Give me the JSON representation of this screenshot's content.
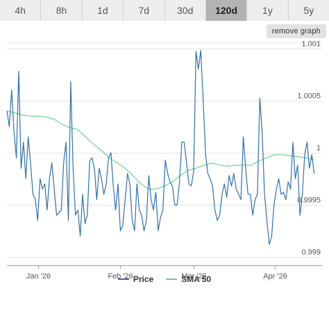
{
  "range_tabs": [
    {
      "label": "4h",
      "active": false
    },
    {
      "label": "8h",
      "active": false
    },
    {
      "label": "1d",
      "active": false
    },
    {
      "label": "7d",
      "active": false
    },
    {
      "label": "30d",
      "active": false
    },
    {
      "label": "120d",
      "active": true
    },
    {
      "label": "1y",
      "active": false
    },
    {
      "label": "5y",
      "active": false
    }
  ],
  "remove_graph_label": "remove graph",
  "colors": {
    "price": "#2f6fa8",
    "sma": "#5fd08a",
    "grid": "#e4e4e4"
  },
  "chart_data": {
    "type": "line",
    "x_ticks": [
      {
        "label": "Jan '26",
        "value": 12
      },
      {
        "label": "Feb '26",
        "value": 43
      },
      {
        "label": "Mar '26",
        "value": 71
      },
      {
        "label": "Apr '26",
        "value": 102
      }
    ],
    "y_ticks": [
      {
        "label": "0.999",
        "value": 0.999
      },
      {
        "label": "0.9995",
        "value": 0.9995
      },
      {
        "label": "1",
        "value": 1.0
      },
      {
        "label": "1.0005",
        "value": 1.0005
      },
      {
        "label": "1.001",
        "value": 1.001
      }
    ],
    "xlim": [
      0,
      120
    ],
    "ylim": [
      0.99892,
      1.00105
    ],
    "grid": true,
    "legend_position": "bottom-center",
    "series": [
      {
        "name": "Price",
        "x": [
          0,
          0.9,
          1.8,
          2.7,
          3.6,
          4.5,
          5.4,
          6.3,
          7.2,
          8.1,
          9,
          9.9,
          10.8,
          11.7,
          12.6,
          13.5,
          14.4,
          15.3,
          16.2,
          17.1,
          18,
          18.9,
          19.8,
          20.7,
          21.6,
          22.5,
          23.4,
          24.3,
          25.2,
          26.1,
          27,
          27.9,
          28.8,
          29.7,
          30.6,
          31.5,
          32.4,
          33.3,
          34.2,
          35.1,
          36,
          36.9,
          37.8,
          38.7,
          39.6,
          40.5,
          41.4,
          42.3,
          43.2,
          44.1,
          45,
          45.9,
          46.8,
          47.7,
          48.6,
          49.5,
          50.4,
          51.3,
          52.2,
          53.1,
          54,
          54.9,
          55.8,
          56.7,
          57.6,
          58.5,
          59.4,
          60.3,
          61.2,
          62.1,
          63,
          63.9,
          64.8,
          65.7,
          66.6,
          67.5,
          68.4,
          69.3,
          70.2,
          71.1,
          72,
          72.9,
          73.8,
          74.7,
          75.6,
          76.5,
          77.4,
          78.3,
          79.2,
          80.1,
          81,
          81.9,
          82.8,
          83.7,
          84.6,
          85.5,
          86.4,
          87.3,
          88.2,
          89.1,
          90,
          90.9,
          91.8,
          92.7,
          93.6,
          94.5,
          95.4,
          96.3,
          97.2,
          98.1,
          99,
          99.9,
          100.8,
          101.7,
          102.6,
          103.5,
          104.4,
          105.3,
          106.2,
          107.1,
          108,
          108.9,
          109.8,
          110.7,
          111.6,
          112.5,
          113.4,
          114.3,
          115.2,
          116.1,
          117
        ],
        "values": [
          1.0004,
          1.00025,
          1.0006,
          1.0002,
          0.99995,
          1.00078,
          0.99985,
          1.0001,
          0.99975,
          1.00015,
          0.9999,
          0.9996,
          0.99955,
          0.99935,
          0.99975,
          0.99965,
          0.9997,
          0.99945,
          0.99975,
          0.9999,
          0.99965,
          0.9994,
          0.99942,
          0.99945,
          0.9999,
          1.0001,
          0.99935,
          1.00068,
          0.99985,
          0.9994,
          0.99945,
          0.9992,
          0.9996,
          0.99932,
          0.9994,
          0.99992,
          0.99995,
          0.99985,
          0.99955,
          0.99985,
          0.99975,
          0.9996,
          0.9997,
          0.99995,
          1.0,
          0.99968,
          0.99945,
          0.9997,
          0.99925,
          0.9993,
          0.99955,
          0.9998,
          0.9997,
          0.99935,
          0.99925,
          0.9997,
          0.99945,
          0.9994,
          0.99925,
          0.99935,
          0.99978,
          0.99955,
          0.99945,
          0.99962,
          0.99925,
          0.99938,
          0.99945,
          0.99993,
          0.9998,
          0.99972,
          0.99968,
          0.9995,
          0.9995,
          0.99972,
          1.0001,
          1.0001,
          0.9999,
          0.9997,
          0.99968,
          0.99982,
          1.00097,
          1.0008,
          1.00098,
          1.00052,
          1.0,
          0.9998,
          0.99975,
          0.99968,
          0.99945,
          0.99935,
          0.9994,
          0.9996,
          0.9997,
          0.99957,
          0.99978,
          0.99968,
          0.9998,
          0.99965,
          0.9996,
          0.99955,
          1.00015,
          0.99985,
          0.9996,
          0.9996,
          0.9994,
          0.99955,
          0.9996,
          1.00052,
          1.0002,
          0.9996,
          0.99935,
          0.99912,
          0.9992,
          0.9995,
          0.99965,
          0.99975,
          0.9996,
          0.99962,
          0.99955,
          0.99972,
          0.99965,
          1.0001,
          0.99975,
          0.99988,
          0.9994,
          0.9996,
          0.99998,
          1.0001,
          0.99985,
          0.99998,
          0.9998
        ]
      },
      {
        "name": "SMA 50",
        "x": [
          0,
          3,
          6,
          9,
          12,
          15,
          18,
          21,
          24,
          27,
          30,
          33,
          36,
          39,
          42,
          45,
          48,
          51,
          54,
          57,
          60,
          63,
          66,
          69,
          72,
          75,
          78,
          81,
          84,
          87,
          90,
          93,
          96,
          99,
          102,
          105,
          108,
          111,
          114,
          117
        ],
        "values": [
          1.0004,
          1.00038,
          1.00036,
          1.00035,
          1.00035,
          1.00034,
          1.00032,
          1.00027,
          1.00024,
          1.00022,
          1.00015,
          1.00008,
          1.00002,
          0.99995,
          0.9999,
          0.99985,
          0.99978,
          0.9997,
          0.99965,
          0.99965,
          0.99968,
          0.99972,
          0.99978,
          0.99983,
          0.99985,
          0.99988,
          0.9999,
          0.99988,
          0.99987,
          0.99988,
          0.99988,
          0.99988,
          0.99992,
          0.99995,
          0.99998,
          0.99998,
          0.99997,
          0.99996,
          0.99995,
          0.99993
        ]
      }
    ]
  }
}
